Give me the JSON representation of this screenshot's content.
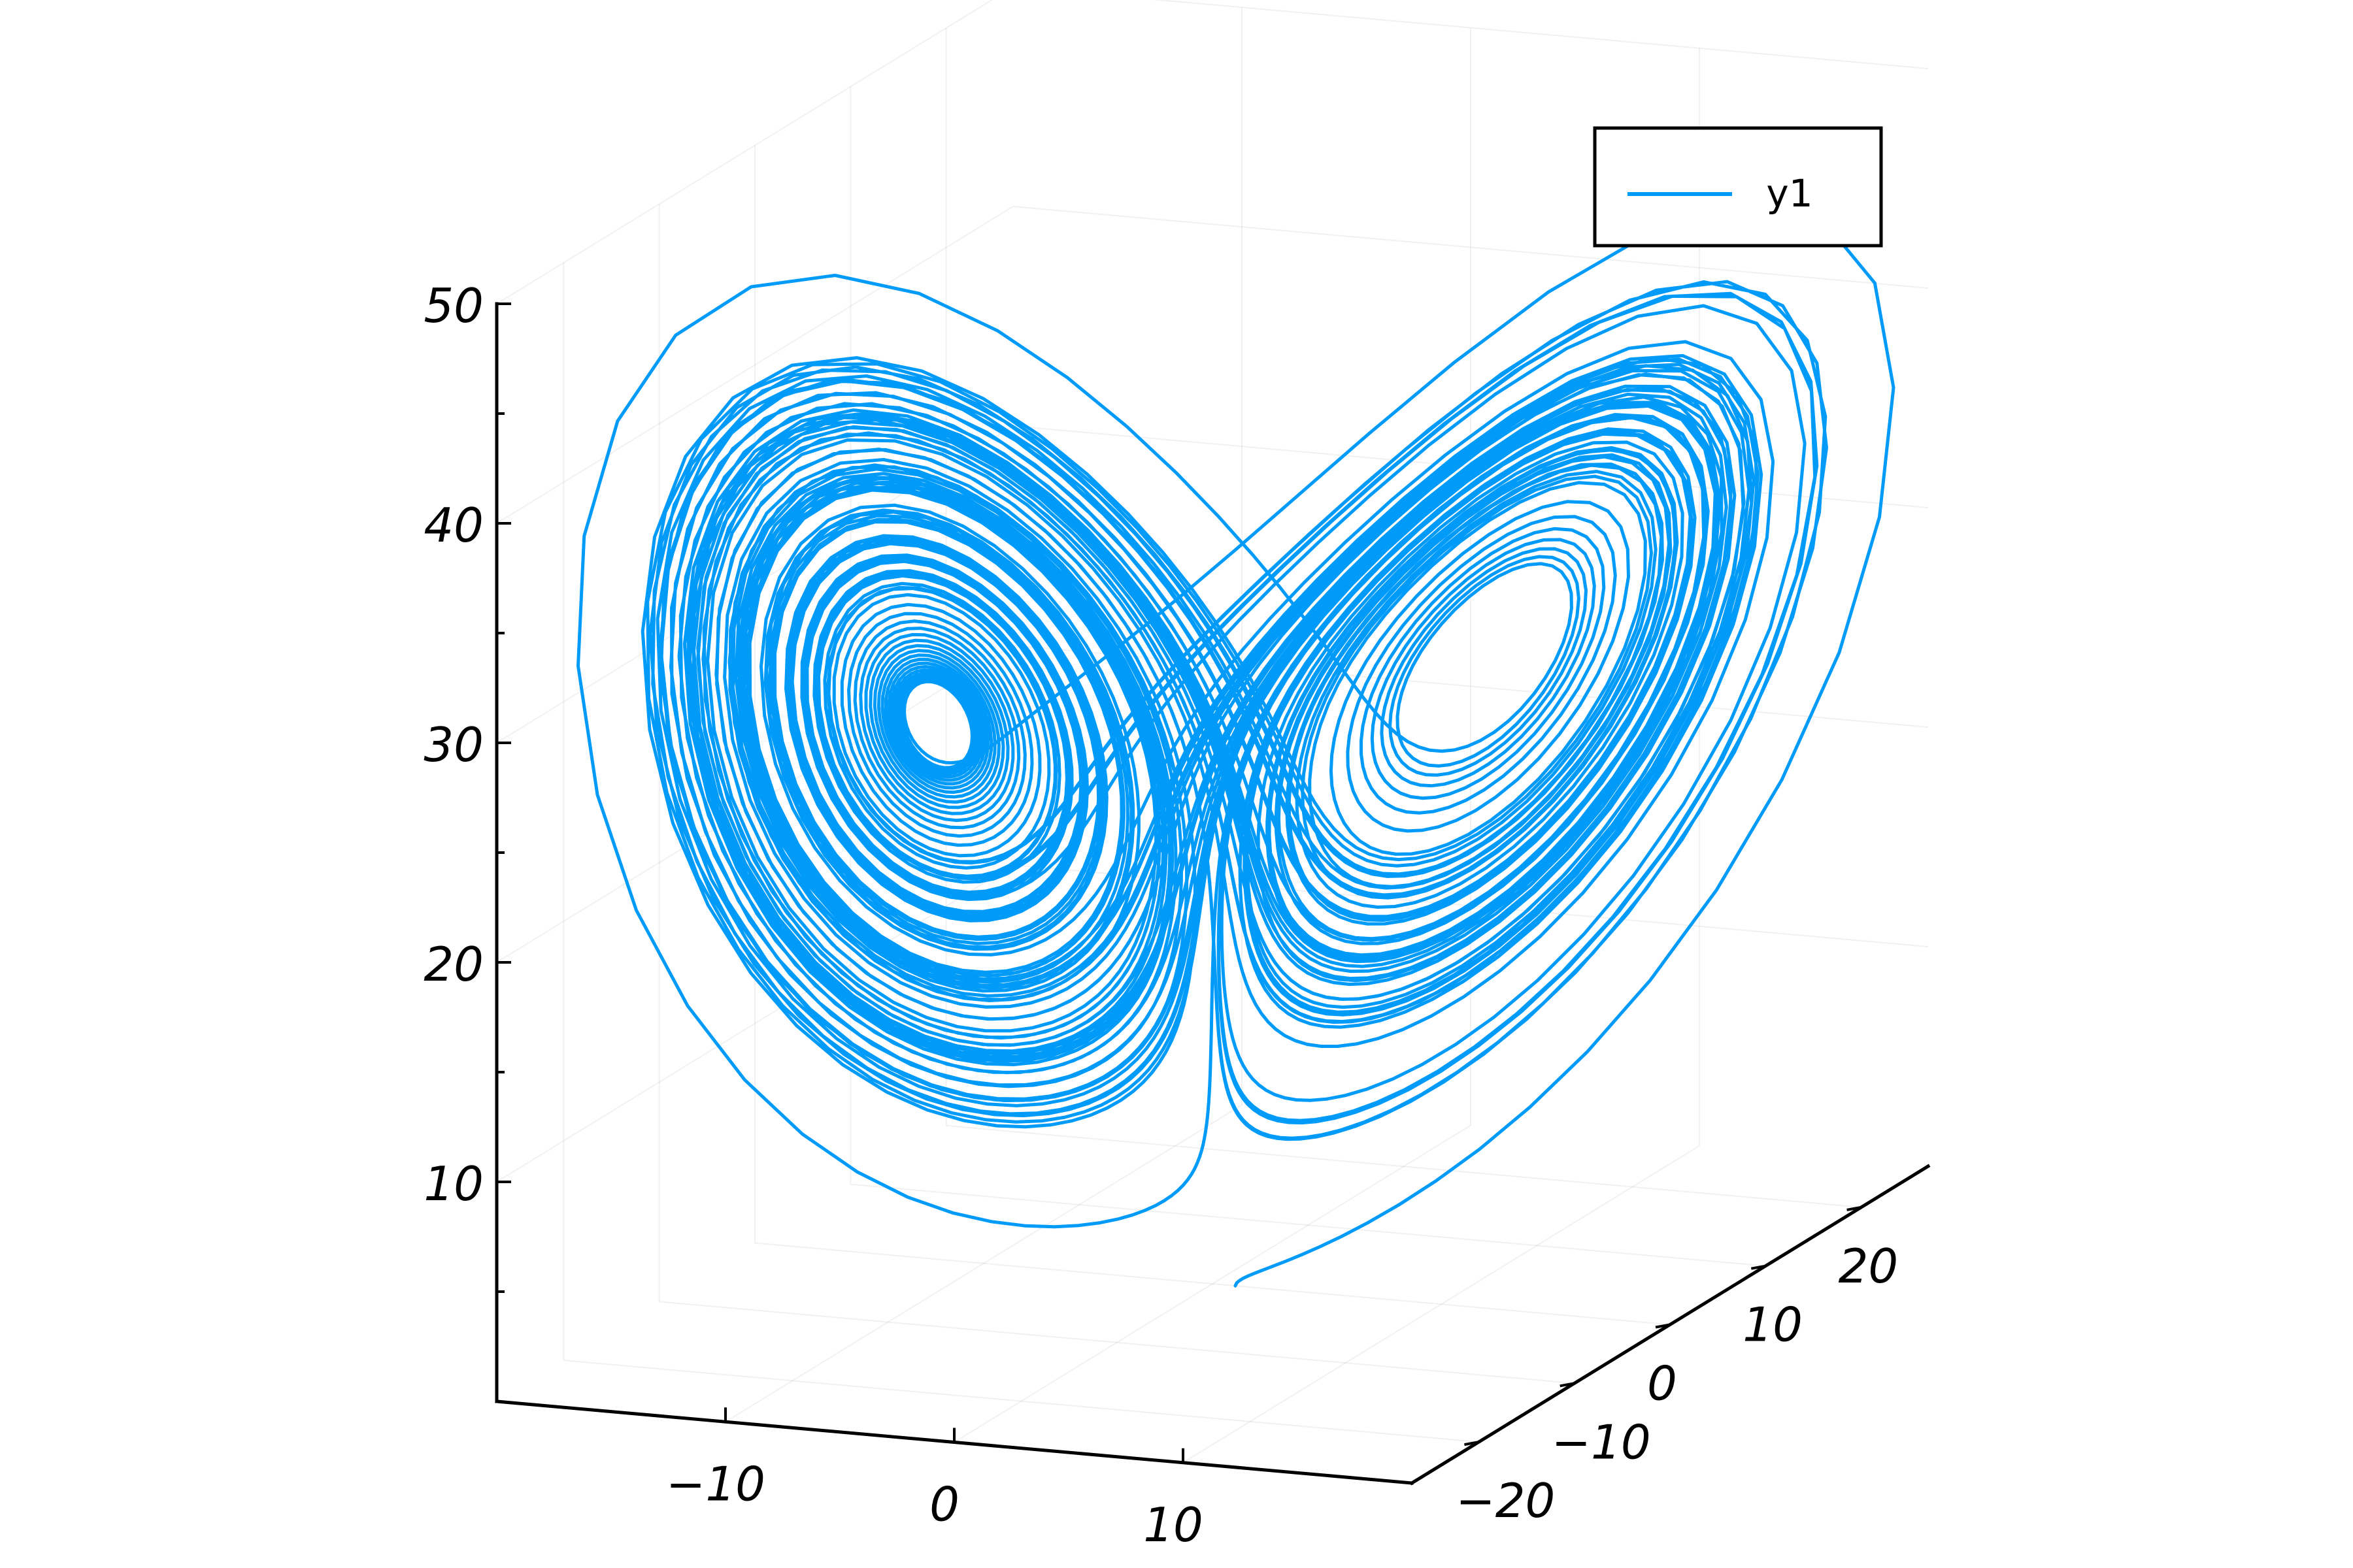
{
  "chart_data": {
    "type": "line",
    "projection": "3d",
    "grid": true,
    "legend_position": "top-right",
    "series": [
      {
        "name": "y1",
        "color": "#009af9",
        "points": [
          [
            1.0,
            0.0,
            0.0
          ],
          [
            0.9,
            2.8,
            0.2
          ],
          [
            2.6,
            7.8,
            1.1
          ],
          [
            8.5,
            21.0,
            9.0
          ],
          [
            14.0,
            16.0,
            28.0
          ],
          [
            9.0,
            5.0,
            32.0
          ],
          [
            5.0,
            3.5,
            28.0
          ],
          [
            6.0,
            7.5,
            24.0
          ],
          [
            8.2,
            8.2,
            27.0
          ],
          [
            8.2,
            8.0,
            27.1
          ],
          [
            6.5,
            6.8,
            27.3
          ],
          [
            2.8,
            3.8,
            27.0
          ],
          [
            -3.0,
            -4.0,
            27.0
          ],
          [
            -6.5,
            -6.8,
            27.2
          ],
          [
            -8.2,
            -8.0,
            27.1
          ],
          [
            -8.5,
            -8.5,
            27.0
          ]
        ]
      }
    ],
    "axes": {
      "x": {
        "ticks": [
          -10,
          0,
          10
        ],
        "tick_labels": [
          "−10",
          "0",
          "10"
        ],
        "range": [
          -20,
          20
        ]
      },
      "y": {
        "ticks": [
          -20,
          -10,
          0,
          10,
          20
        ],
        "tick_labels": [
          "−20",
          "−10",
          "0",
          "10",
          "20"
        ],
        "range": [
          -27,
          27
        ]
      },
      "z": {
        "ticks": [
          10,
          20,
          30,
          40,
          50
        ],
        "tick_labels": [
          "10",
          "20",
          "30",
          "40",
          "50"
        ],
        "range": [
          0,
          50
        ]
      }
    },
    "xlabel": "",
    "ylabel": "",
    "zlabel": "",
    "title": ""
  }
}
